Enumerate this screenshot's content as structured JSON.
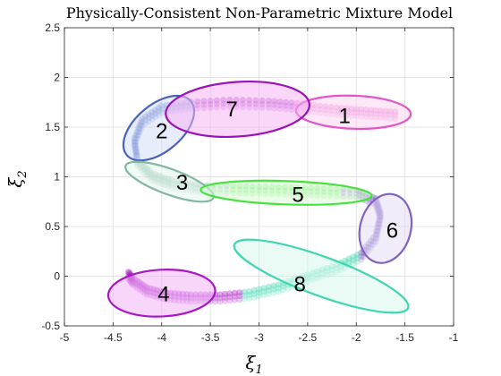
{
  "chart_data": {
    "type": "scatter",
    "title": "Physically-Consistent Non-Parametric Mixture Model",
    "xlabel": "ξ",
    "xlabel_sub": "1",
    "ylabel": "ξ",
    "ylabel_sub": "2",
    "xlim": [
      -5,
      -1
    ],
    "ylim": [
      -0.5,
      2.5
    ],
    "xticks": [
      -5,
      -4.5,
      -4,
      -3.5,
      -3,
      -2.5,
      -2,
      -1.5,
      -1
    ],
    "xtick_labels": [
      "-5",
      "-4.5",
      "-4",
      "-3.5",
      "-3",
      "-2.5",
      "-2",
      "-1.5",
      "-1"
    ],
    "yticks": [
      -0.5,
      0,
      0.5,
      1,
      1.5,
      2,
      2.5
    ],
    "ytick_labels": [
      "-0.5",
      "0",
      "0.5",
      "1",
      "1.5",
      "2",
      "2.5"
    ],
    "grid": true,
    "trajectory_path": [
      [
        -1.6,
        1.62
      ],
      [
        -1.9,
        1.64
      ],
      [
        -2.2,
        1.66
      ],
      [
        -2.55,
        1.7
      ],
      [
        -2.9,
        1.73
      ],
      [
        -3.3,
        1.74
      ],
      [
        -3.7,
        1.72
      ],
      [
        -4.0,
        1.68
      ],
      [
        -4.2,
        1.55
      ],
      [
        -4.28,
        1.35
      ],
      [
        -4.25,
        1.15
      ],
      [
        -4.1,
        1.0
      ],
      [
        -3.9,
        0.93
      ],
      [
        -3.6,
        0.88
      ],
      [
        -3.2,
        0.87
      ],
      [
        -2.8,
        0.86
      ],
      [
        -2.4,
        0.85
      ],
      [
        -2.0,
        0.83
      ],
      [
        -1.8,
        0.75
      ],
      [
        -1.75,
        0.6
      ],
      [
        -1.8,
        0.38
      ],
      [
        -1.95,
        0.2
      ],
      [
        -2.2,
        0.08
      ],
      [
        -2.5,
        -0.02
      ],
      [
        -2.8,
        -0.12
      ],
      [
        -3.1,
        -0.19
      ],
      [
        -3.4,
        -0.22
      ],
      [
        -3.7,
        -0.22
      ],
      [
        -3.95,
        -0.2
      ],
      [
        -4.15,
        -0.15
      ],
      [
        -4.3,
        -0.05
      ],
      [
        -4.35,
        0.02
      ]
    ],
    "components": [
      {
        "label": "1",
        "cx": -2.03,
        "cy": 1.65,
        "rx": 0.59,
        "ry": 0.17,
        "angle": -2,
        "color": "#e356c6",
        "fill": "#fbd6f2"
      },
      {
        "label": "2",
        "cx": -4.03,
        "cy": 1.49,
        "rx": 0.43,
        "ry": 0.24,
        "angle": 40,
        "color": "#4a62bd",
        "fill": "#d4def7"
      },
      {
        "label": "3",
        "cx": -3.92,
        "cy": 0.95,
        "rx": 0.48,
        "ry": 0.13,
        "angle": -20,
        "color": "#85b8a4",
        "fill": "#e2f4ec"
      },
      {
        "label": "4",
        "cx": -4.0,
        "cy": -0.17,
        "rx": 0.55,
        "ry": 0.24,
        "angle": 3,
        "color": "#a817c4",
        "fill": "#f2b4f7"
      },
      {
        "label": "5",
        "cx": -2.72,
        "cy": 0.84,
        "rx": 0.88,
        "ry": 0.12,
        "angle": -2,
        "color": "#46e23e",
        "fill": "#d8fbd3"
      },
      {
        "label": "6",
        "cx": -1.7,
        "cy": 0.48,
        "rx": 0.36,
        "ry": 0.26,
        "angle": 75,
        "color": "#7f63c0",
        "fill": "#e4ddf5"
      },
      {
        "label": "7",
        "cx": -3.22,
        "cy": 1.68,
        "rx": 0.74,
        "ry": 0.28,
        "angle": 4,
        "color": "#9a12b8",
        "fill": "#f5b4f4"
      },
      {
        "label": "8",
        "cx": -2.36,
        "cy": 0.0,
        "rx": 0.95,
        "ry": 0.2,
        "angle": -20,
        "color": "#3fd6b0",
        "fill": "#d9f7ef"
      }
    ],
    "label_positions": [
      {
        "label": "1",
        "x": -2.12,
        "y": 1.62
      },
      {
        "label": "2",
        "x": -4.0,
        "y": 1.47
      },
      {
        "label": "3",
        "x": -3.79,
        "y": 0.95
      },
      {
        "label": "4",
        "x": -3.98,
        "y": -0.17
      },
      {
        "label": "5",
        "x": -2.6,
        "y": 0.83
      },
      {
        "label": "6",
        "x": -1.63,
        "y": 0.47
      },
      {
        "label": "7",
        "x": -3.28,
        "y": 1.69
      },
      {
        "label": "8",
        "x": -2.58,
        "y": -0.07
      }
    ]
  }
}
